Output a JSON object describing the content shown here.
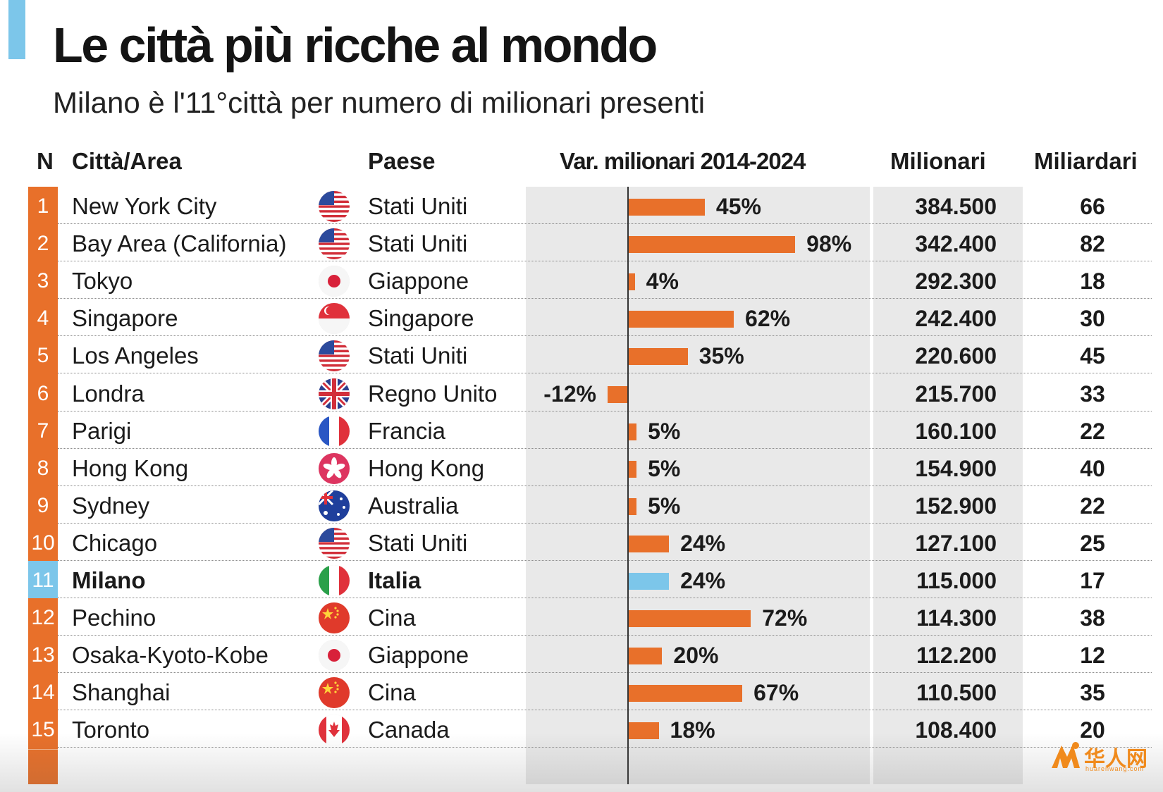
{
  "title": "Le città più ricche al mondo",
  "subtitle": "Milano è l'11°città per numero di milionari presenti",
  "headers": {
    "n": "N",
    "city": "Città/Area",
    "country": "Paese",
    "var": "Var. milionari 2014-2024",
    "millionaires": "Milionari",
    "billionaires": "Miliardari"
  },
  "colors": {
    "bar": "#e8702a",
    "highlight": "#7cc6ea",
    "panel": "#e9e9e9"
  },
  "chart_data": {
    "type": "table",
    "title": "Le città più ricche al mondo",
    "subtitle": "Milano è l'11°città per numero di milionari presenti",
    "columns": [
      "N",
      "Città/Area",
      "Paese",
      "Var. milionari 2014-2024",
      "Milionari",
      "Miliardari"
    ],
    "rows": [
      {
        "rank": "1",
        "city": "New York City",
        "country": "Stati Uniti",
        "flag": "usa-flag-icon",
        "change": 45,
        "change_label": "45%",
        "millionaires": "384.500",
        "billionaires": "66"
      },
      {
        "rank": "2",
        "city": "Bay Area (California)",
        "country": "Stati Uniti",
        "flag": "usa-flag-icon",
        "change": 98,
        "change_label": "98%",
        "millionaires": "342.400",
        "billionaires": "82"
      },
      {
        "rank": "3",
        "city": "Tokyo",
        "country": "Giappone",
        "flag": "japan-flag-icon",
        "change": 4,
        "change_label": "4%",
        "millionaires": "292.300",
        "billionaires": "18"
      },
      {
        "rank": "4",
        "city": "Singapore",
        "country": "Singapore",
        "flag": "singapore-flag-icon",
        "change": 62,
        "change_label": "62%",
        "millionaires": "242.400",
        "billionaires": "30"
      },
      {
        "rank": "5",
        "city": "Los Angeles",
        "country": "Stati Uniti",
        "flag": "usa-flag-icon",
        "change": 35,
        "change_label": "35%",
        "millionaires": "220.600",
        "billionaires": "45"
      },
      {
        "rank": "6",
        "city": "Londra",
        "country": "Regno Unito",
        "flag": "uk-flag-icon",
        "change": -12,
        "change_label": "-12%",
        "millionaires": "215.700",
        "billionaires": "33"
      },
      {
        "rank": "7",
        "city": "Parigi",
        "country": "Francia",
        "flag": "france-flag-icon",
        "change": 5,
        "change_label": "5%",
        "millionaires": "160.100",
        "billionaires": "22"
      },
      {
        "rank": "8",
        "city": "Hong Kong",
        "country": "Hong Kong",
        "flag": "hong-kong-flag-icon",
        "change": 5,
        "change_label": "5%",
        "millionaires": "154.900",
        "billionaires": "40"
      },
      {
        "rank": "9",
        "city": "Sydney",
        "country": "Australia",
        "flag": "australia-flag-icon",
        "change": 5,
        "change_label": "5%",
        "millionaires": "152.900",
        "billionaires": "22"
      },
      {
        "rank": "10",
        "city": "Chicago",
        "country": "Stati Uniti",
        "flag": "usa-flag-icon",
        "change": 24,
        "change_label": "24%",
        "millionaires": "127.100",
        "billionaires": "25"
      },
      {
        "rank": "11",
        "city": "Milano",
        "country": "Italia",
        "flag": "italy-flag-icon",
        "change": 24,
        "change_label": "24%",
        "millionaires": "115.000",
        "billionaires": "17",
        "highlight": true
      },
      {
        "rank": "12",
        "city": "Pechino",
        "country": "Cina",
        "flag": "china-flag-icon",
        "change": 72,
        "change_label": "72%",
        "millionaires": "114.300",
        "billionaires": "38"
      },
      {
        "rank": "13",
        "city": "Osaka-Kyoto-Kobe",
        "country": "Giappone",
        "flag": "japan-flag-icon",
        "change": 20,
        "change_label": "20%",
        "millionaires": "112.200",
        "billionaires": "12"
      },
      {
        "rank": "14",
        "city": "Shanghai",
        "country": "Cina",
        "flag": "china-flag-icon",
        "change": 67,
        "change_label": "67%",
        "millionaires": "110.500",
        "billionaires": "35"
      },
      {
        "rank": "15",
        "city": "Toronto",
        "country": "Canada",
        "flag": "canada-flag-icon",
        "change": 18,
        "change_label": "18%",
        "millionaires": "108.400",
        "billionaires": "20"
      }
    ]
  },
  "watermark": {
    "text": "华人网",
    "sub": "huarenwang.com",
    "icon": "huarenwang-logo-icon"
  }
}
